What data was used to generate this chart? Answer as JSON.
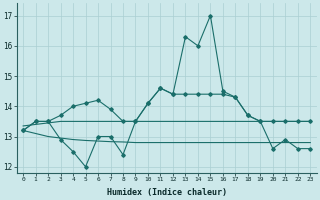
{
  "x": [
    0,
    1,
    2,
    3,
    4,
    5,
    6,
    7,
    8,
    9,
    10,
    11,
    12,
    13,
    14,
    15,
    16,
    17,
    18,
    19,
    20,
    21,
    22,
    23
  ],
  "main_y": [
    13.2,
    13.5,
    13.5,
    12.9,
    12.5,
    12.0,
    13.0,
    13.0,
    12.4,
    13.5,
    14.1,
    14.6,
    14.4,
    16.3,
    16.0,
    17.0,
    14.5,
    14.3,
    13.7,
    13.5,
    12.6,
    12.9,
    12.6,
    12.6
  ],
  "upper_y": [
    13.2,
    13.5,
    13.5,
    13.7,
    14.0,
    14.1,
    14.2,
    13.9,
    13.5,
    13.5,
    14.1,
    14.6,
    14.4,
    14.4,
    14.4,
    14.4,
    14.4,
    14.3,
    13.7,
    13.5,
    13.5,
    13.5,
    13.5,
    13.5
  ],
  "flat_upper_y": [
    13.35,
    13.4,
    13.45,
    13.5,
    13.5,
    13.5,
    13.5,
    13.5,
    13.5,
    13.5,
    13.5,
    13.5,
    13.5,
    13.5,
    13.5,
    13.5,
    13.5,
    13.5,
    13.5,
    13.5,
    13.5,
    13.5,
    13.5,
    13.5
  ],
  "flat_lower_y": [
    13.2,
    13.1,
    13.0,
    12.95,
    12.9,
    12.87,
    12.85,
    12.83,
    12.82,
    12.8,
    12.8,
    12.8,
    12.8,
    12.8,
    12.8,
    12.8,
    12.8,
    12.8,
    12.8,
    12.8,
    12.8,
    12.8,
    12.8,
    12.8
  ],
  "bg_color": "#cce8ea",
  "grid_color": "#aacfd2",
  "line_color": "#1a6e6a",
  "xlabel": "Humidex (Indice chaleur)",
  "ylim": [
    11.8,
    17.4
  ],
  "xlim": [
    -0.5,
    23.5
  ],
  "yticks": [
    12,
    13,
    14,
    15,
    16,
    17
  ],
  "xtick_labels": [
    "0",
    "1",
    "2",
    "3",
    "4",
    "5",
    "6",
    "7",
    "8",
    "9",
    "10",
    "11",
    "12",
    "13",
    "14",
    "15",
    "16",
    "17",
    "18",
    "19",
    "20",
    "21",
    "22",
    "23"
  ]
}
